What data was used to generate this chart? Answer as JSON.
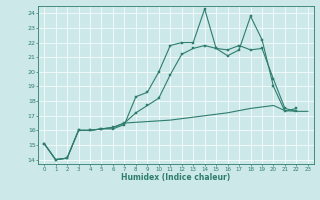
{
  "xlabel": "Humidex (Indice chaleur)",
  "bg_color": "#cce8e8",
  "grid_color": "#ffffff",
  "line_color": "#2e7d6e",
  "xlim": [
    -0.5,
    23.5
  ],
  "ylim": [
    13.7,
    24.5
  ],
  "yticks": [
    14,
    15,
    16,
    17,
    18,
    19,
    20,
    21,
    22,
    23,
    24
  ],
  "xticks": [
    0,
    1,
    2,
    3,
    4,
    5,
    6,
    7,
    8,
    9,
    10,
    11,
    12,
    13,
    14,
    15,
    16,
    17,
    18,
    19,
    20,
    21,
    22,
    23
  ],
  "line1_x": [
    0,
    1,
    2,
    3,
    4,
    5,
    6,
    7,
    8,
    9,
    10,
    11,
    12,
    13,
    14,
    15,
    16,
    17,
    18,
    19,
    20,
    21,
    22
  ],
  "line1_y": [
    15.1,
    14.0,
    14.1,
    16.0,
    16.0,
    16.1,
    16.1,
    16.4,
    18.3,
    18.6,
    20.0,
    21.8,
    22.0,
    22.0,
    24.3,
    21.6,
    21.1,
    21.5,
    23.8,
    22.2,
    19.0,
    17.3,
    17.5
  ],
  "line2_x": [
    0,
    1,
    2,
    3,
    4,
    5,
    6,
    7,
    8,
    9,
    10,
    11,
    12,
    13,
    14,
    15,
    16,
    17,
    18,
    19,
    20,
    21,
    22
  ],
  "line2_y": [
    15.1,
    14.0,
    14.1,
    16.0,
    16.0,
    16.1,
    16.2,
    16.5,
    17.2,
    17.7,
    18.2,
    19.8,
    21.2,
    21.6,
    21.8,
    21.6,
    21.5,
    21.8,
    21.5,
    21.6,
    19.5,
    17.5,
    17.3
  ],
  "line3_x": [
    0,
    1,
    2,
    3,
    4,
    5,
    6,
    7,
    8,
    9,
    10,
    11,
    12,
    13,
    14,
    15,
    16,
    17,
    18,
    19,
    20,
    21,
    22,
    23
  ],
  "line3_y": [
    15.1,
    14.0,
    14.1,
    16.0,
    16.0,
    16.1,
    16.2,
    16.5,
    16.55,
    16.6,
    16.65,
    16.7,
    16.8,
    16.9,
    17.0,
    17.1,
    17.2,
    17.35,
    17.5,
    17.6,
    17.7,
    17.35,
    17.3,
    17.3
  ]
}
